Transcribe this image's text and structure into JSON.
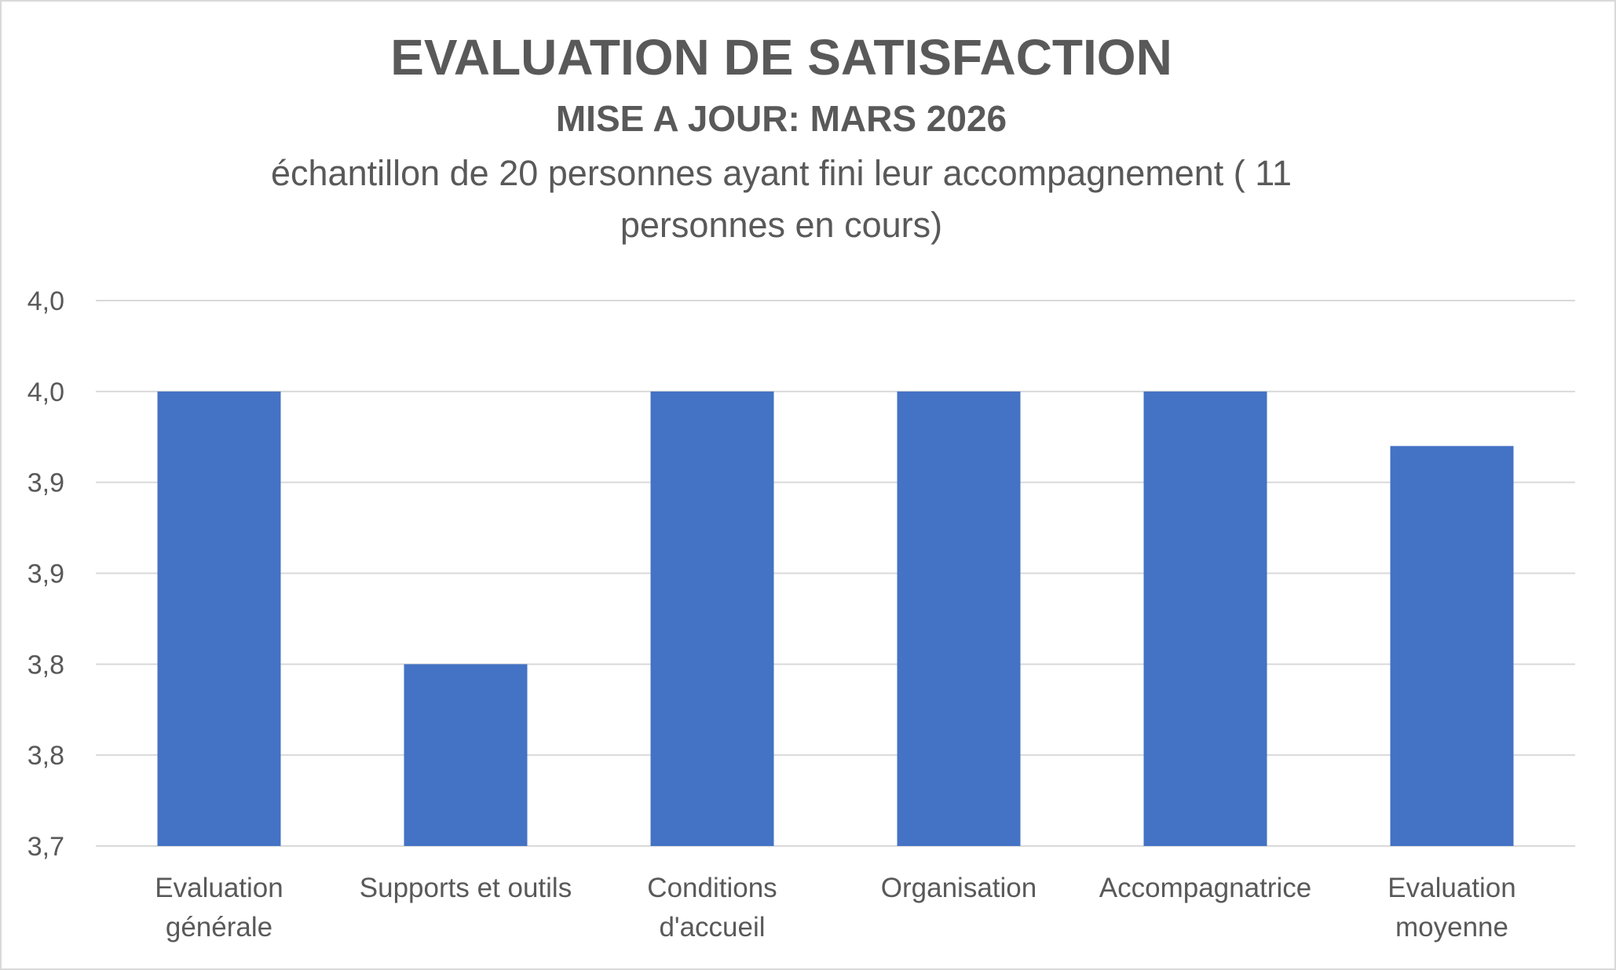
{
  "chart_data": {
    "type": "bar",
    "title": "EVALUATION DE SATISFACTION",
    "subtitle": "MISE A JOUR:  MARS 2026",
    "description": "échantillon de 20 personnes ayant fini leur accompagnement ( 11 personnes en cours)",
    "categories": [
      [
        "Evaluation",
        "générale"
      ],
      [
        "Supports et outils"
      ],
      [
        "Conditions",
        "d'accueil"
      ],
      [
        "Organisation"
      ],
      [
        "Accompagnatrice"
      ],
      [
        "Evaluation",
        "moyenne"
      ]
    ],
    "values": [
      3.95,
      3.8,
      3.95,
      3.95,
      3.95,
      3.92
    ],
    "ylim": [
      3.7,
      4.0
    ],
    "yticks": [
      3.7,
      3.75,
      3.8,
      3.85,
      3.9,
      3.95,
      4.0
    ],
    "ytick_labels": [
      "3,7",
      "3,8",
      "3,8",
      "3,9",
      "3,9",
      "4,0",
      "4,0"
    ],
    "xlabel": "",
    "ylabel": "",
    "grid": true,
    "bar_color": "#4472C4",
    "grid_color": "#d9d9d9"
  }
}
